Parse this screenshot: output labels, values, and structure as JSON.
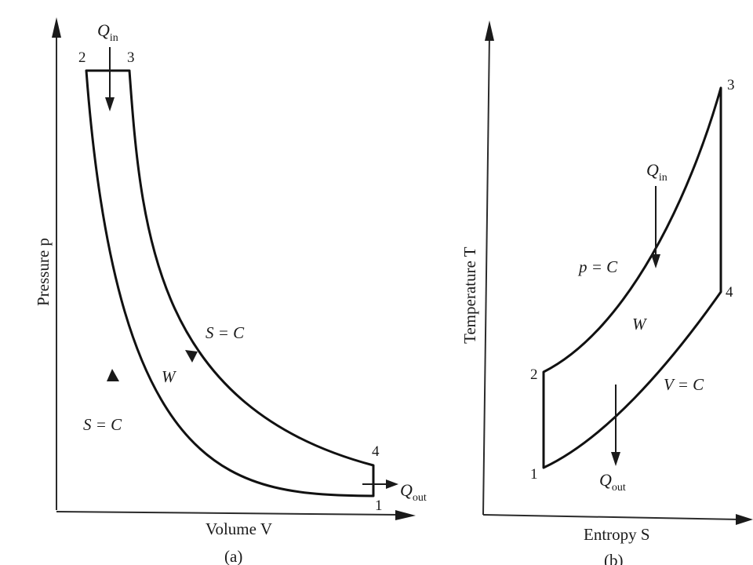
{
  "panel_a": {
    "y_axis_label": "Pressure p",
    "x_axis_label": "Volume V",
    "caption": "(a)",
    "heat_in": {
      "q": "Q",
      "sub": "in"
    },
    "heat_out": {
      "q": "Q",
      "sub": "out"
    },
    "state_points": [
      "1",
      "2",
      "3",
      "4"
    ],
    "process_upper": "S = C",
    "process_lower": "S = C",
    "work": "W"
  },
  "panel_b": {
    "y_axis_label": "Temperature T",
    "x_axis_label": "Entropy S",
    "caption": "(b)",
    "heat_in": {
      "q": "Q",
      "sub": "in"
    },
    "heat_out": {
      "q": "Q",
      "sub": "out"
    },
    "state_points": [
      "1",
      "2",
      "3",
      "4"
    ],
    "process_upper": "p = C",
    "process_lower": "V = C",
    "work": "W"
  },
  "colors": {
    "line": "#111111",
    "text": "#1a1a1a",
    "background": "#ffffff"
  }
}
